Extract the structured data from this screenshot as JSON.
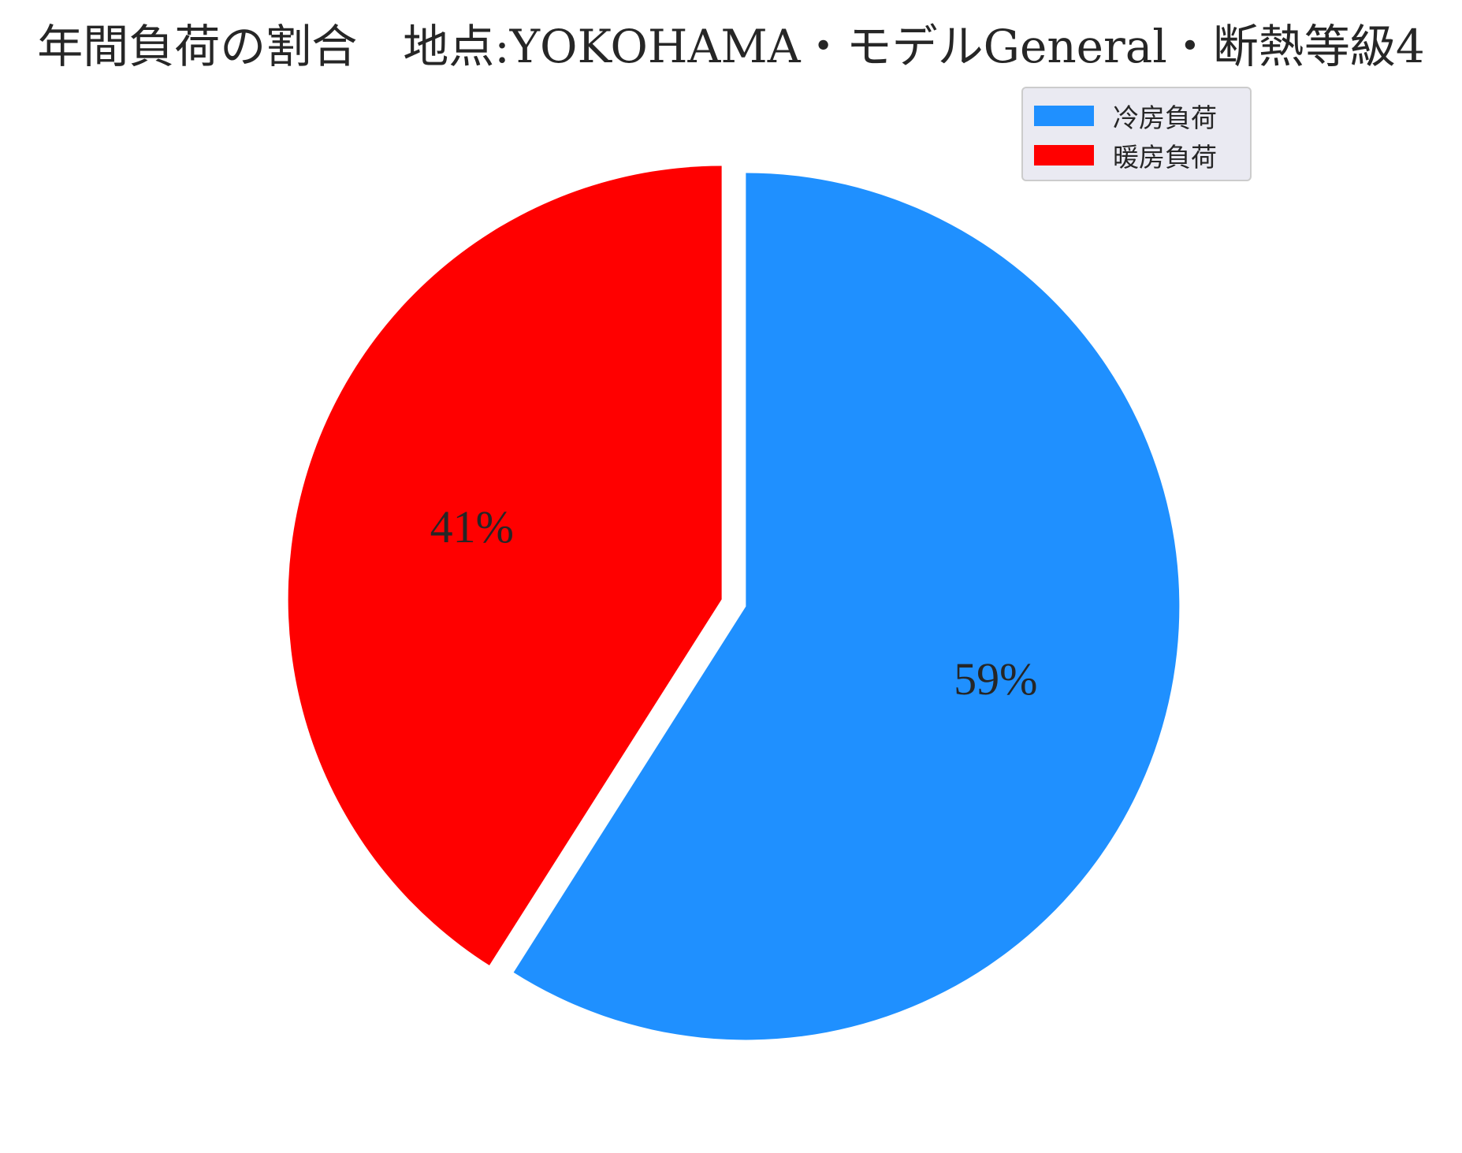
{
  "colors": {
    "cooling": "#1f90ff",
    "heating": "#ff0000",
    "text": "#262626",
    "legend_bg": "#eaeaf2"
  },
  "chart_data": {
    "type": "pie",
    "title": "年間負荷の割合　地点:YOKOHAMA・モデルGeneral・断熱等級4",
    "categories": [
      "冷房負荷",
      "暖房負荷"
    ],
    "values": [
      59,
      41
    ],
    "labels": [
      "59%",
      "41%"
    ],
    "legend_placement": "top-right",
    "start_angle": "90",
    "direction": "clockwise",
    "exploded": true
  }
}
